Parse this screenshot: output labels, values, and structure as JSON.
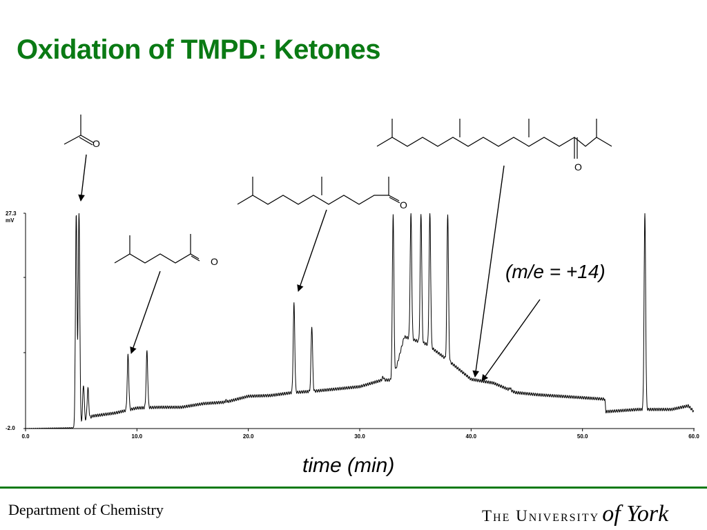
{
  "slide": {
    "title": "Oxidation of TMPD: Ketones"
  },
  "chart_data": {
    "type": "line",
    "x_ticks": [
      "0.0",
      "10.0",
      "20.0",
      "30.0",
      "40.0",
      "50.0",
      "60.0"
    ],
    "y_ticks": [
      "27.3 mV",
      "-2.0"
    ],
    "y_top_label": "27.3",
    "y_unit": "mV",
    "y_bottom_label": "-2.0",
    "xlim": [
      0,
      60
    ],
    "ylim": [
      -2.0,
      27.3
    ],
    "xlabel": "time (min)",
    "baseline": [
      [
        0,
        -2.0
      ],
      [
        4.3,
        -1.9
      ],
      [
        6,
        -0.3
      ],
      [
        8,
        0.1
      ],
      [
        10,
        0.8
      ],
      [
        12,
        0.9
      ],
      [
        14,
        0.9
      ],
      [
        16,
        1.4
      ],
      [
        18,
        1.6
      ],
      [
        20,
        2.4
      ],
      [
        22,
        2.5
      ],
      [
        24,
        2.9
      ],
      [
        26,
        3.1
      ],
      [
        28,
        3.4
      ],
      [
        30,
        3.7
      ],
      [
        32,
        4.6
      ],
      [
        33,
        4.6
      ],
      [
        34,
        10.5
      ],
      [
        36,
        9.5
      ],
      [
        38,
        7.2
      ],
      [
        40,
        4.7
      ],
      [
        42,
        4.2
      ],
      [
        44,
        2.9
      ],
      [
        46,
        2.6
      ],
      [
        48,
        2.4
      ],
      [
        50,
        2.2
      ],
      [
        52,
        2.0
      ],
      [
        52.1,
        0.3
      ],
      [
        55,
        0.6
      ],
      [
        58,
        0.6
      ],
      [
        59.5,
        1.1
      ],
      [
        60,
        0.3
      ]
    ],
    "peaks": [
      {
        "rt": 4.55,
        "height": 27.3
      },
      {
        "rt": 4.8,
        "height": 27.3
      },
      {
        "rt": 5.2,
        "height": 4.0
      },
      {
        "rt": 5.6,
        "height": 3.5
      },
      {
        "rt": 9.2,
        "height": 8.0
      },
      {
        "rt": 10.9,
        "height": 8.5
      },
      {
        "rt": 17.2,
        "height": 1.4
      },
      {
        "rt": 18.0,
        "height": 1.8
      },
      {
        "rt": 24.1,
        "height": 15.0
      },
      {
        "rt": 25.7,
        "height": 12.0
      },
      {
        "rt": 32.1,
        "height": 5.0
      },
      {
        "rt": 33.0,
        "height": 27.3
      },
      {
        "rt": 34.6,
        "height": 27.3
      },
      {
        "rt": 35.5,
        "height": 27.3
      },
      {
        "rt": 36.3,
        "height": 27.3
      },
      {
        "rt": 37.9,
        "height": 27.3
      },
      {
        "rt": 38.8,
        "height": 4.0
      },
      {
        "rt": 40.2,
        "height": 1.5
      },
      {
        "rt": 40.9,
        "height": 1.5
      },
      {
        "rt": 42.1,
        "height": 4.0
      },
      {
        "rt": 43.5,
        "height": 3.5
      },
      {
        "rt": 55.6,
        "height": 27.3
      }
    ],
    "annotations": {
      "atom_label": "O",
      "note": "(m/e = +14)"
    }
  },
  "footer": {
    "department": "Department of Chemistry",
    "logo_caps": "The University",
    "logo_script": "of York"
  },
  "colors": {
    "title": "#0a7a14",
    "rule": "#0a7a14",
    "trace": "#000000"
  }
}
